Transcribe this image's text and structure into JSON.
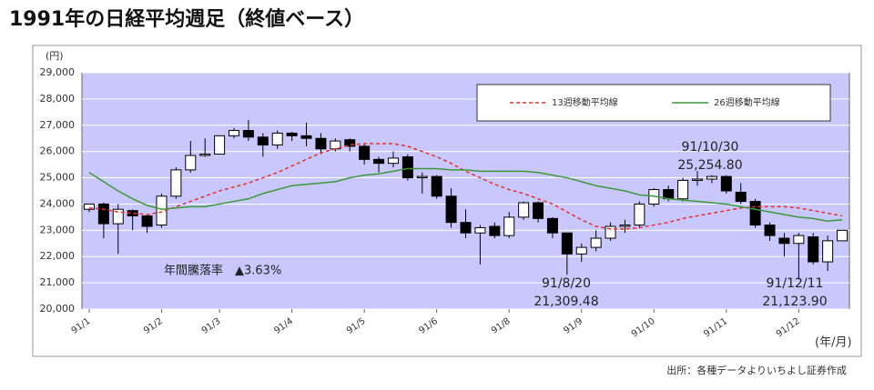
{
  "chart_data": {
    "type": "candlestick",
    "title": "1991年の日経平均週足（終値ベース）",
    "y_unit": "(円)",
    "x_unit": "(年/月)",
    "source": "出所：各種データよりいちよし証券作成",
    "categories": [
      "91/1",
      null,
      null,
      null,
      null,
      "91/2",
      null,
      null,
      null,
      "91/3",
      null,
      null,
      null,
      null,
      "91/4",
      null,
      null,
      null,
      null,
      "91/5",
      null,
      null,
      null,
      null,
      "91/6",
      null,
      null,
      null,
      null,
      "91/8",
      null,
      null,
      null,
      null,
      "91/9",
      null,
      null,
      null,
      null,
      "91/10",
      null,
      null,
      null,
      null,
      "91/11",
      null,
      null,
      null,
      null,
      "91/12",
      null,
      null,
      null
    ],
    "open": [
      23800,
      24000,
      23250,
      23750,
      23550,
      23200,
      24300,
      25300,
      25850,
      25900,
      26600,
      26800,
      26550,
      26250,
      26700,
      26600,
      26500,
      26100,
      26450,
      26200,
      25700,
      25550,
      25800,
      25000,
      25050,
      24300,
      23300,
      22900,
      23150,
      22800,
      23500,
      24050,
      23450,
      22900,
      22100,
      22350,
      22700,
      23150,
      23200,
      24000,
      24550,
      24200,
      24900,
      24950,
      25050,
      24450,
      24100,
      23200,
      22700,
      22500,
      22750,
      21800,
      22600
    ],
    "high": [
      24000,
      24050,
      24000,
      23800,
      23600,
      24400,
      25400,
      26400,
      26500,
      26600,
      26900,
      27200,
      26700,
      26800,
      26750,
      27100,
      26700,
      26500,
      26500,
      26300,
      25800,
      26000,
      25900,
      25200,
      25100,
      24600,
      23800,
      23200,
      23300,
      23700,
      24100,
      24100,
      23500,
      22900,
      22500,
      23000,
      23300,
      23400,
      24100,
      24600,
      24700,
      25000,
      25254.8,
      25100,
      25100,
      24800,
      24200,
      23300,
      22900,
      22900,
      22900,
      22800,
      23000
    ],
    "low": [
      23700,
      22700,
      22100,
      23000,
      22900,
      23100,
      24200,
      25200,
      25800,
      25900,
      26500,
      26400,
      25800,
      26100,
      26400,
      26200,
      25900,
      26000,
      26000,
      25500,
      25200,
      25400,
      24900,
      24400,
      24200,
      23100,
      22700,
      21700,
      22700,
      22700,
      23400,
      23300,
      22700,
      21309.48,
      21800,
      22200,
      22600,
      22900,
      23100,
      23900,
      24100,
      24100,
      24700,
      24800,
      24400,
      24000,
      23100,
      22600,
      22000,
      21123.9,
      21700,
      21450,
      22600
    ],
    "close": [
      24000,
      23250,
      23800,
      23550,
      23150,
      24300,
      25300,
      25850,
      25900,
      26600,
      26800,
      26550,
      26250,
      26700,
      26600,
      26500,
      26100,
      26400,
      26200,
      25700,
      25550,
      25750,
      25000,
      25050,
      24300,
      23300,
      22900,
      23100,
      22800,
      23500,
      24050,
      23450,
      22900,
      22100,
      22350,
      22700,
      23150,
      23200,
      24000,
      24550,
      24200,
      24900,
      24950,
      25050,
      24500,
      24100,
      23200,
      22800,
      22500,
      22800,
      21800,
      22600,
      23000
    ],
    "series": [
      {
        "name": "13週移動平均線",
        "color": "#e8302a",
        "dash": true,
        "values": [
          23850,
          23800,
          23700,
          23650,
          23600,
          23700,
          23900,
          24100,
          24300,
          24500,
          24650,
          24800,
          25000,
          25200,
          25450,
          25700,
          25950,
          26100,
          26250,
          26300,
          26300,
          26300,
          26200,
          26000,
          25800,
          25550,
          25250,
          25000,
          24750,
          24550,
          24400,
          24200,
          24000,
          23700,
          23400,
          23150,
          23050,
          23050,
          23100,
          23200,
          23300,
          23450,
          23550,
          23650,
          23750,
          23850,
          23900,
          23900,
          23900,
          23850,
          23750,
          23650,
          23550
        ]
      },
      {
        "name": "26週移動平均線",
        "color": "#3a9a3a",
        "dash": false,
        "values": [
          25200,
          24850,
          24500,
          24200,
          23950,
          23800,
          23850,
          23900,
          23900,
          24000,
          24100,
          24200,
          24400,
          24550,
          24700,
          24750,
          24800,
          24850,
          25000,
          25100,
          25150,
          25250,
          25350,
          25350,
          25350,
          25300,
          25300,
          25250,
          25250,
          25250,
          25250,
          25200,
          25100,
          25000,
          24850,
          24700,
          24600,
          24500,
          24350,
          24300,
          24200,
          24150,
          24100,
          24050,
          24000,
          23900,
          23800,
          23700,
          23600,
          23500,
          23450,
          23350,
          23400
        ]
      }
    ],
    "up_color": "#ffffff",
    "down_color": "#000000",
    "plot_background": "#c8c8ff",
    "ylim": [
      20000,
      29000
    ],
    "yticks": [
      {
        "value": 20000,
        "label": "20,000"
      },
      {
        "value": 21000,
        "label": "21,000"
      },
      {
        "value": 22000,
        "label": "22,000"
      },
      {
        "value": 23000,
        "label": "23,000"
      },
      {
        "value": 24000,
        "label": "24,000"
      },
      {
        "value": 25000,
        "label": "25,000"
      },
      {
        "value": 26000,
        "label": "26,000"
      },
      {
        "value": 27000,
        "label": "27,000"
      },
      {
        "value": 28000,
        "label": "28,000"
      },
      {
        "value": 29000,
        "label": "29,000"
      }
    ],
    "grid": true,
    "legend": "top-right",
    "annotations": [
      {
        "lines": [
          "91/10/30",
          "25,254.80"
        ]
      },
      {
        "lines": [
          "91/8/20",
          "21,309.48"
        ]
      },
      {
        "lines": [
          "91/12/11",
          "21,123.90"
        ]
      },
      {
        "lines": [
          "年間騰落率　▲3.63%"
        ]
      }
    ]
  }
}
